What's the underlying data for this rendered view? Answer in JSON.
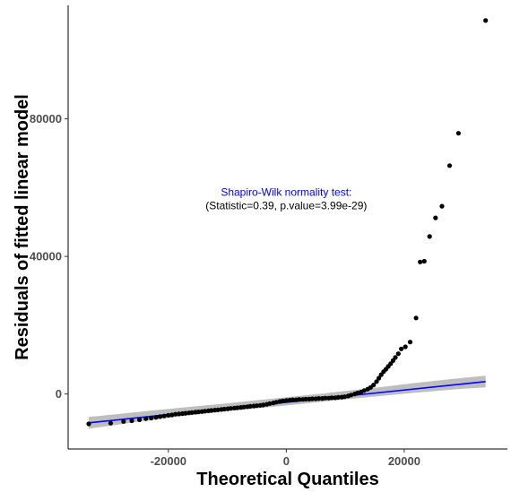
{
  "chart_data": {
    "type": "scatter",
    "title": "",
    "xlabel": "Theoretical Quantiles",
    "ylabel": "Residuals of fitted linear model",
    "xlim": [
      -37000,
      37500
    ],
    "ylim": [
      -16000,
      113000
    ],
    "x_ticks": [
      -20000,
      0,
      20000
    ],
    "x_tick_labels": [
      "-20000",
      "0",
      "20000"
    ],
    "y_ticks": [
      0,
      40000,
      80000
    ],
    "y_tick_labels": [
      "0",
      "40000",
      "80000"
    ],
    "grid": false,
    "legend": "none",
    "reference_line": {
      "x": [
        -33500,
        33800
      ],
      "y": [
        -8400,
        3600
      ],
      "color": "#0000ff"
    },
    "confidence_band": {
      "x": [
        -33500,
        -26000,
        -18000,
        -10000,
        -2000,
        6000,
        14000,
        22000,
        30000,
        33800
      ],
      "lower": [
        -10100,
        -8300,
        -6500,
        -5000,
        -3700,
        -2300,
        -900,
        400,
        1500,
        1900
      ],
      "upper": [
        -6700,
        -5400,
        -4000,
        -2700,
        -1300,
        100,
        1600,
        3200,
        4700,
        5300
      ],
      "color": "#bebebe"
    },
    "points": {
      "color": "#000000",
      "x": [
        -33500,
        -29800,
        -27600,
        -26200,
        -24900,
        -23800,
        -22900,
        -22100,
        -21400,
        -20700,
        -20000,
        -19400,
        -18800,
        -18200,
        -17600,
        -17100,
        -16500,
        -16000,
        -15400,
        -14900,
        -14300,
        -13800,
        -13200,
        -12700,
        -12100,
        -11600,
        -11000,
        -10500,
        -9900,
        -9400,
        -8800,
        -8300,
        -7700,
        -7200,
        -6600,
        -6100,
        -5500,
        -5000,
        -4400,
        -3900,
        -3300,
        -2800,
        -2200,
        -1700,
        -1100,
        -600,
        0,
        600,
        1100,
        1700,
        2200,
        2800,
        3300,
        3900,
        4400,
        5000,
        5500,
        6100,
        6600,
        7200,
        7700,
        8300,
        8800,
        9400,
        9900,
        10500,
        11000,
        11600,
        12100,
        12700,
        13200,
        13800,
        14300,
        14800,
        15300,
        15700,
        16100,
        16500,
        16900,
        17300,
        17700,
        18100,
        18500,
        19000,
        19500,
        20200,
        21000,
        22000,
        22700,
        23400,
        24300,
        25300,
        26400,
        27700,
        29200,
        33800
      ],
      "y": [
        -8700,
        -8500,
        -8000,
        -7800,
        -7500,
        -7200,
        -7000,
        -6800,
        -6600,
        -6400,
        -6200,
        -6100,
        -5900,
        -5800,
        -5700,
        -5600,
        -5500,
        -5400,
        -5300,
        -5200,
        -5100,
        -5000,
        -4900,
        -4800,
        -4700,
        -4600,
        -4500,
        -4400,
        -4300,
        -4200,
        -4100,
        -4000,
        -3900,
        -3800,
        -3700,
        -3600,
        -3500,
        -3400,
        -3300,
        -3200,
        -3000,
        -2800,
        -2600,
        -2400,
        -2200,
        -2000,
        -1900,
        -1800,
        -1700,
        -1700,
        -1600,
        -1600,
        -1500,
        -1500,
        -1400,
        -1400,
        -1300,
        -1300,
        -1200,
        -1200,
        -1100,
        -1100,
        -1000,
        -900,
        -800,
        -600,
        -300,
        0,
        300,
        600,
        1000,
        1400,
        1900,
        2600,
        3600,
        4600,
        5600,
        6500,
        7200,
        8000,
        8800,
        9700,
        10600,
        11700,
        13100,
        13700,
        15100,
        22100,
        38400,
        38600,
        45800,
        51200,
        54600,
        66400,
        75800,
        108600
      ]
    },
    "annotation": {
      "line1": "Shapiro-Wilk normality test:",
      "line2": "(Statistic=0.39, p.value=3.99e-29)",
      "line1_color": "#0000ff",
      "line2_color": "#000000",
      "anchor_x": 0,
      "anchor_y": 56000
    }
  }
}
